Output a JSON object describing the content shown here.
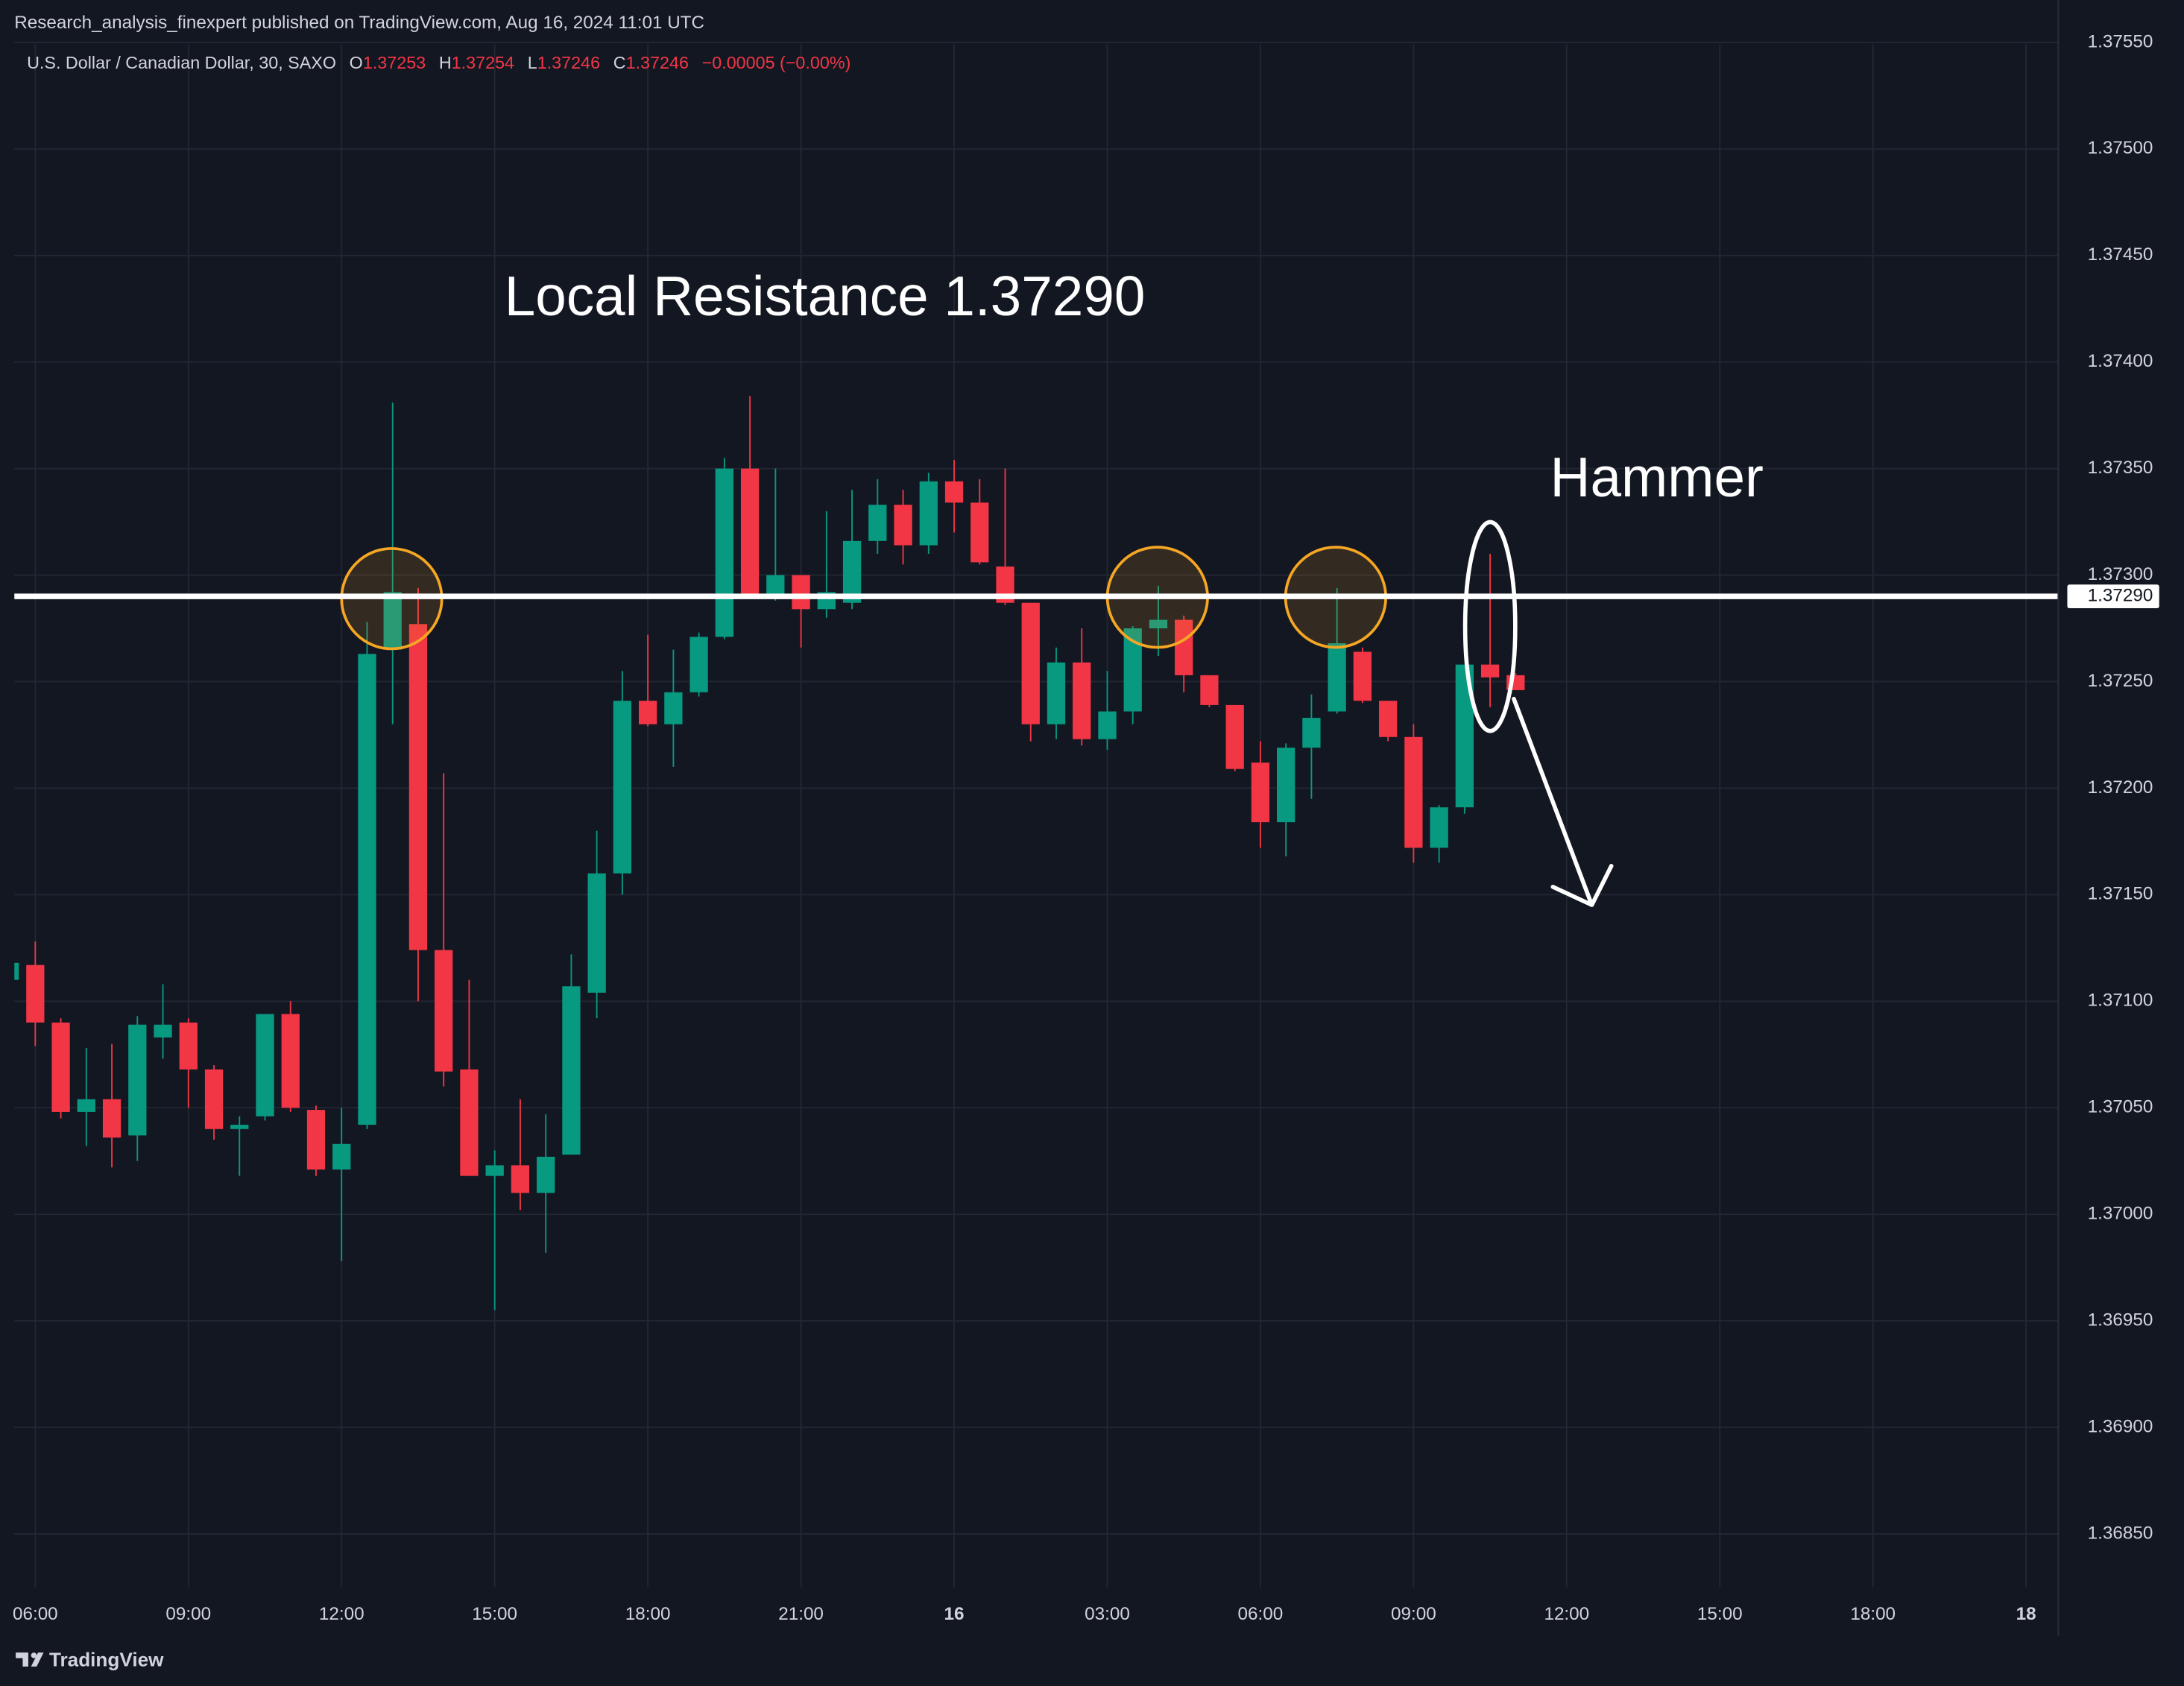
{
  "header": {
    "published": "Research_analysis_finexpert published on TradingView.com, Aug 16, 2024 11:01 UTC"
  },
  "footer": {
    "brand": "TradingView"
  },
  "chart_data": {
    "type": "candlestick",
    "legend": {
      "symbol": "U.S. Dollar / Canadian Dollar, 30, SAXO",
      "open_label": "O",
      "open": "1.37253",
      "high_label": "H",
      "high": "1.37254",
      "low_label": "L",
      "low": "1.37246",
      "close_label": "C",
      "close": "1.37246",
      "change": "−0.00005 (−0.00%)"
    },
    "annotations": {
      "resistance_text": "Local Resistance 1.37290",
      "hammer_text": "Hammer"
    },
    "resistance": {
      "value": 1.3729,
      "label": "1.37290"
    },
    "up_color": "#089981",
    "down_color": "#f23645",
    "x": [
      5.5,
      6,
      6.5,
      7,
      7.5,
      8,
      8.5,
      9,
      9.5,
      10,
      10.5,
      11,
      11.5,
      12,
      12.5,
      13,
      13.5,
      14,
      14.5,
      15,
      15.5,
      16,
      16.5,
      17,
      17.5,
      18,
      18.5,
      19,
      19.5,
      20,
      20.5,
      21,
      21.5,
      22,
      22.5,
      23,
      23.5,
      24,
      24.5,
      25,
      25.5,
      26,
      26.5,
      27,
      27.5,
      28,
      28.5,
      29,
      29.5,
      30,
      30.5,
      31,
      31.5,
      32,
      32.5,
      33,
      33.5,
      34,
      34.5,
      35
    ],
    "open": [
      1.3711,
      1.37117,
      1.3709,
      1.37048,
      1.37054,
      1.37037,
      1.37083,
      1.3709,
      1.37068,
      1.3704,
      1.37046,
      1.37094,
      1.37049,
      1.37021,
      1.37042,
      1.37265,
      1.37277,
      1.37124,
      1.37068,
      1.37018,
      1.37023,
      1.3701,
      1.37028,
      1.37104,
      1.3716,
      1.37241,
      1.3723,
      1.37245,
      1.37271,
      1.3735,
      1.3729,
      1.373,
      1.37284,
      1.37287,
      1.37316,
      1.37333,
      1.37314,
      1.37344,
      1.37334,
      1.37304,
      1.37287,
      1.3723,
      1.37259,
      1.37223,
      1.37236,
      1.37275,
      1.37279,
      1.37253,
      1.37239,
      1.37212,
      1.37184,
      1.37219,
      1.37236,
      1.37264,
      1.37241,
      1.37224,
      1.37172,
      1.37191,
      1.37258,
      1.37253
    ],
    "high": [
      1.3712,
      1.37128,
      1.37092,
      1.37078,
      1.3708,
      1.37093,
      1.37108,
      1.37092,
      1.3707,
      1.37046,
      1.37094,
      1.371,
      1.37051,
      1.3705,
      1.37278,
      1.37381,
      1.37294,
      1.37207,
      1.3711,
      1.3703,
      1.37054,
      1.37047,
      1.37122,
      1.3718,
      1.37255,
      1.37272,
      1.37265,
      1.37273,
      1.37355,
      1.37384,
      1.3735,
      1.373,
      1.3733,
      1.3734,
      1.37345,
      1.3734,
      1.37348,
      1.37354,
      1.37345,
      1.3735,
      1.37287,
      1.37266,
      1.37275,
      1.37255,
      1.37276,
      1.37295,
      1.37281,
      1.37253,
      1.37239,
      1.37222,
      1.37221,
      1.37244,
      1.37294,
      1.37266,
      1.37241,
      1.3723,
      1.37192,
      1.37258,
      1.3731,
      1.37254
    ],
    "low": [
      1.37108,
      1.37079,
      1.37045,
      1.37032,
      1.37022,
      1.37025,
      1.37073,
      1.3705,
      1.37035,
      1.37018,
      1.37044,
      1.37048,
      1.37018,
      1.36978,
      1.3704,
      1.3723,
      1.371,
      1.3706,
      1.37018,
      1.36955,
      1.37002,
      1.36982,
      1.37028,
      1.37092,
      1.3715,
      1.37229,
      1.3721,
      1.37243,
      1.3727,
      1.3729,
      1.37288,
      1.37266,
      1.3728,
      1.37284,
      1.3731,
      1.37305,
      1.3731,
      1.3732,
      1.37305,
      1.37286,
      1.37222,
      1.37223,
      1.3722,
      1.37218,
      1.3723,
      1.37262,
      1.37245,
      1.37238,
      1.37208,
      1.37172,
      1.37168,
      1.37195,
      1.37235,
      1.3724,
      1.37222,
      1.37165,
      1.37165,
      1.37188,
      1.37238,
      1.37246
    ],
    "close": [
      1.37118,
      1.3709,
      1.37048,
      1.37054,
      1.37036,
      1.37089,
      1.37089,
      1.37068,
      1.3704,
      1.37042,
      1.37094,
      1.3705,
      1.37021,
      1.37033,
      1.37263,
      1.37292,
      1.37124,
      1.37067,
      1.37018,
      1.37023,
      1.3701,
      1.37027,
      1.37107,
      1.3716,
      1.37241,
      1.3723,
      1.37245,
      1.37271,
      1.3735,
      1.37291,
      1.373,
      1.37284,
      1.37292,
      1.37316,
      1.37333,
      1.37314,
      1.37344,
      1.37334,
      1.37306,
      1.37287,
      1.3723,
      1.37259,
      1.37223,
      1.37236,
      1.37275,
      1.37279,
      1.37253,
      1.37239,
      1.37209,
      1.37184,
      1.37219,
      1.37233,
      1.37268,
      1.37241,
      1.37224,
      1.37172,
      1.37191,
      1.37258,
      1.37252,
      1.37246
    ],
    "xlim": [
      5.59,
      45.63
    ],
    "xticks": [
      {
        "value": 6,
        "label": "06:00"
      },
      {
        "value": 9,
        "label": "09:00"
      },
      {
        "value": 12,
        "label": "12:00"
      },
      {
        "value": 15,
        "label": "15:00"
      },
      {
        "value": 18,
        "label": "18:00"
      },
      {
        "value": 21,
        "label": "21:00"
      },
      {
        "value": 24,
        "label": "16"
      },
      {
        "value": 27,
        "label": "03:00"
      },
      {
        "value": 30,
        "label": "06:00"
      },
      {
        "value": 33,
        "label": "09:00"
      },
      {
        "value": 36,
        "label": "12:00"
      },
      {
        "value": 39,
        "label": "15:00"
      },
      {
        "value": 42,
        "label": "18:00"
      },
      {
        "value": 45,
        "label": "18"
      }
    ],
    "ylim": [
      1.36825,
      1.37549
    ],
    "yticks": [
      {
        "value": 1.3755,
        "label": "1.37550"
      },
      {
        "value": 1.375,
        "label": "1.37500"
      },
      {
        "value": 1.3745,
        "label": "1.37450"
      },
      {
        "value": 1.374,
        "label": "1.37400"
      },
      {
        "value": 1.3735,
        "label": "1.37350"
      },
      {
        "value": 1.373,
        "label": "1.37300"
      },
      {
        "value": 1.3725,
        "label": "1.37250"
      },
      {
        "value": 1.372,
        "label": "1.37200"
      },
      {
        "value": 1.3715,
        "label": "1.37150"
      },
      {
        "value": 1.371,
        "label": "1.37100"
      },
      {
        "value": 1.3705,
        "label": "1.37050"
      },
      {
        "value": 1.37,
        "label": "1.37000"
      },
      {
        "value": 1.3695,
        "label": "1.36950"
      },
      {
        "value": 1.369,
        "label": "1.36900"
      },
      {
        "value": 1.3685,
        "label": "1.36850"
      }
    ],
    "grid": true
  }
}
